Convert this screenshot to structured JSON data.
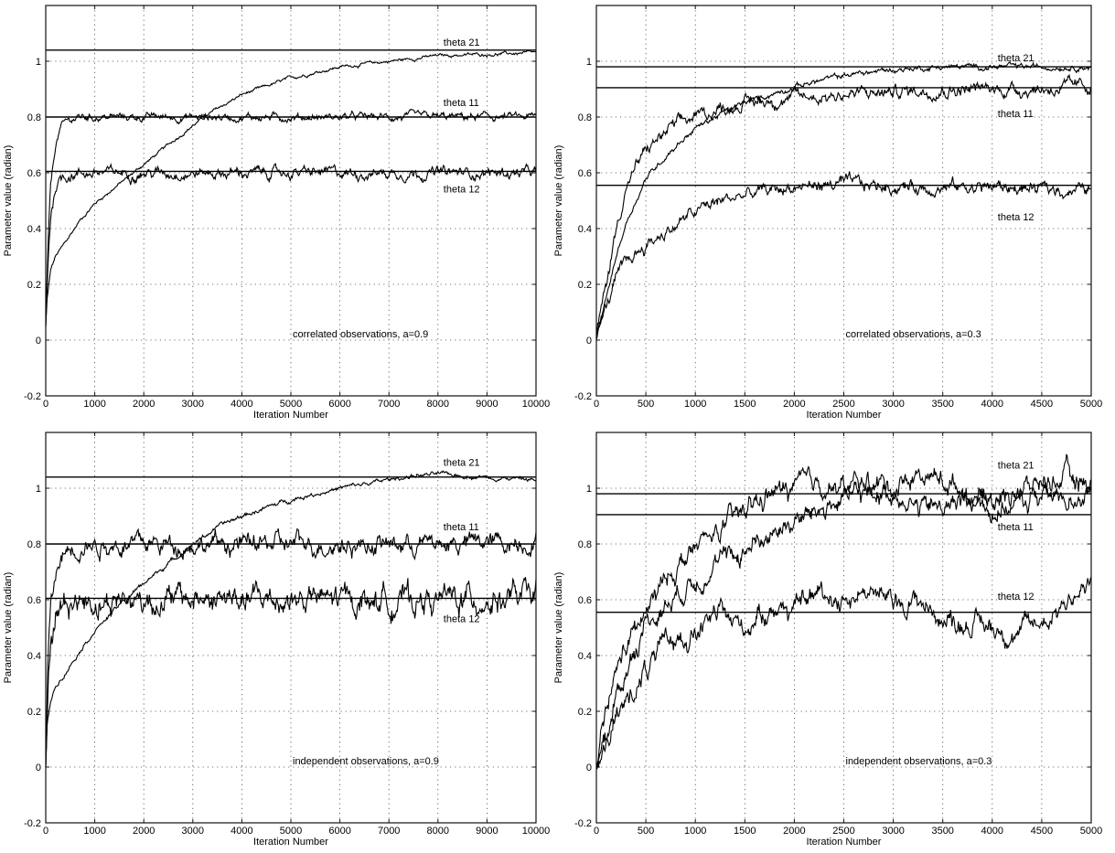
{
  "chart_data": [
    {
      "type": "line",
      "xlabel": "Iteration Number",
      "ylabel": "Parameter value (radian)",
      "xlim": [
        0,
        10000
      ],
      "ylim": [
        -0.2,
        1.2
      ],
      "xticks": [
        0,
        1000,
        2000,
        3000,
        4000,
        5000,
        6000,
        7000,
        8000,
        9000,
        10000
      ],
      "yticks": [
        -0.2,
        0,
        0.2,
        0.4,
        0.6,
        0.8,
        1
      ],
      "grid": true,
      "reference_lines": [
        1.04,
        0.8,
        0.605
      ],
      "annotation": "correlated observations, a=0.9",
      "series": [
        {
          "name": "theta 21",
          "label_at": [
            8000,
            1.055
          ],
          "noise": 0.003,
          "x": [
            0,
            30,
            100,
            200,
            400,
            700,
            1000,
            1500,
            2000,
            2500,
            3000,
            3500,
            4000,
            5000,
            6000,
            7000,
            8000,
            9000,
            10000
          ],
          "y": [
            0.05,
            0.15,
            0.25,
            0.3,
            0.35,
            0.43,
            0.49,
            0.56,
            0.63,
            0.7,
            0.77,
            0.83,
            0.88,
            0.94,
            0.98,
            1.0,
            1.02,
            1.025,
            1.03
          ]
        },
        {
          "name": "theta 11",
          "label_at": [
            8000,
            0.84
          ],
          "noise": 0.007,
          "x": [
            0,
            50,
            100,
            200,
            300,
            400,
            500,
            700,
            1000,
            2000,
            4000,
            6000,
            8000,
            10000
          ],
          "y": [
            0.05,
            0.35,
            0.55,
            0.7,
            0.76,
            0.78,
            0.79,
            0.8,
            0.8,
            0.8,
            0.8,
            0.8,
            0.8,
            0.8
          ]
        },
        {
          "name": "theta 12",
          "label_at": [
            8000,
            0.53
          ],
          "noise": 0.01,
          "x": [
            0,
            50,
            100,
            200,
            300,
            400,
            500,
            700,
            1000,
            2000,
            4000,
            6000,
            8000,
            10000
          ],
          "y": [
            0.05,
            0.3,
            0.45,
            0.55,
            0.58,
            0.59,
            0.595,
            0.6,
            0.6,
            0.6,
            0.6,
            0.6,
            0.6,
            0.6
          ]
        }
      ]
    },
    {
      "type": "line",
      "xlabel": "Iteration Number",
      "ylabel": "Parameter value (radian)",
      "xlim": [
        0,
        5000
      ],
      "ylim": [
        -0.2,
        1.2
      ],
      "xticks": [
        0,
        500,
        1000,
        1500,
        2000,
        2500,
        3000,
        3500,
        4000,
        4500,
        5000
      ],
      "yticks": [
        -0.2,
        0,
        0.2,
        0.4,
        0.6,
        0.8,
        1
      ],
      "grid": true,
      "reference_lines": [
        0.98,
        0.905,
        0.555
      ],
      "annotation": "correlated observations, a=0.3",
      "series": [
        {
          "name": "theta 21",
          "label_at": [
            4000,
            1.0
          ],
          "noise": 0.005,
          "x": [
            0,
            100,
            200,
            300,
            400,
            500,
            750,
            1000,
            1250,
            1500,
            2000,
            2500,
            3000,
            3500,
            4000,
            4500,
            5000
          ],
          "y": [
            0.0,
            0.15,
            0.3,
            0.42,
            0.5,
            0.58,
            0.68,
            0.76,
            0.81,
            0.85,
            0.91,
            0.95,
            0.97,
            0.98,
            0.98,
            0.98,
            0.98
          ]
        },
        {
          "name": "theta 11",
          "label_at": [
            4000,
            0.8
          ],
          "noise": 0.012,
          "x": [
            0,
            100,
            200,
            300,
            400,
            500,
            750,
            1000,
            1250,
            1500,
            2000,
            2500,
            3000,
            3500,
            4000,
            4500,
            5000
          ],
          "y": [
            0.02,
            0.2,
            0.4,
            0.55,
            0.62,
            0.68,
            0.76,
            0.8,
            0.83,
            0.85,
            0.87,
            0.88,
            0.89,
            0.9,
            0.9,
            0.9,
            0.91
          ]
        },
        {
          "name": "theta 12",
          "label_at": [
            4000,
            0.43
          ],
          "noise": 0.012,
          "x": [
            0,
            100,
            200,
            300,
            400,
            500,
            750,
            1000,
            1250,
            1500,
            2000,
            2500,
            3000,
            3500,
            4000,
            4500,
            5000
          ],
          "y": [
            0.02,
            0.12,
            0.22,
            0.27,
            0.31,
            0.34,
            0.4,
            0.46,
            0.5,
            0.52,
            0.55,
            0.56,
            0.55,
            0.55,
            0.55,
            0.54,
            0.54
          ]
        }
      ]
    },
    {
      "type": "line",
      "xlabel": "Iteration Number",
      "ylabel": "Parameter value (radian)",
      "xlim": [
        0,
        10000
      ],
      "ylim": [
        -0.2,
        1.2
      ],
      "xticks": [
        0,
        1000,
        2000,
        3000,
        4000,
        5000,
        6000,
        7000,
        8000,
        9000,
        10000
      ],
      "yticks": [
        -0.2,
        0,
        0.2,
        0.4,
        0.6,
        0.8,
        1
      ],
      "grid": true,
      "reference_lines": [
        1.04,
        0.8,
        0.605
      ],
      "annotation": "independent observations, a=0.9",
      "series": [
        {
          "name": "theta 21",
          "label_at": [
            8000,
            1.08
          ],
          "noise": 0.004,
          "x": [
            0,
            30,
            100,
            200,
            400,
            700,
            1000,
            1500,
            2000,
            2500,
            3000,
            3500,
            4000,
            5000,
            6000,
            7000,
            7500,
            8000,
            9000,
            10000
          ],
          "y": [
            0.0,
            0.15,
            0.24,
            0.29,
            0.34,
            0.42,
            0.49,
            0.58,
            0.66,
            0.73,
            0.8,
            0.86,
            0.9,
            0.96,
            1.0,
            1.03,
            1.045,
            1.05,
            1.04,
            1.03
          ]
        },
        {
          "name": "theta 11",
          "label_at": [
            8000,
            0.85
          ],
          "noise": 0.018,
          "x": [
            0,
            50,
            100,
            200,
            300,
            400,
            500,
            700,
            1000,
            2000,
            4000,
            6000,
            8000,
            10000
          ],
          "y": [
            0.0,
            0.4,
            0.56,
            0.68,
            0.74,
            0.77,
            0.79,
            0.8,
            0.8,
            0.8,
            0.8,
            0.8,
            0.8,
            0.81
          ]
        },
        {
          "name": "theta 12",
          "label_at": [
            8000,
            0.52
          ],
          "noise": 0.025,
          "x": [
            0,
            50,
            100,
            200,
            300,
            400,
            500,
            700,
            1000,
            2000,
            4000,
            6000,
            8000,
            10000
          ],
          "y": [
            0.0,
            0.35,
            0.48,
            0.54,
            0.57,
            0.59,
            0.6,
            0.6,
            0.6,
            0.6,
            0.6,
            0.6,
            0.6,
            0.61
          ]
        }
      ]
    },
    {
      "type": "line",
      "xlabel": "Iteration Number",
      "ylabel": "Parameter value (radian)",
      "xlim": [
        0,
        5000
      ],
      "ylim": [
        -0.2,
        1.2
      ],
      "xticks": [
        0,
        500,
        1000,
        1500,
        2000,
        2500,
        3000,
        3500,
        4000,
        4500,
        5000
      ],
      "yticks": [
        -0.2,
        0,
        0.2,
        0.4,
        0.6,
        0.8,
        1
      ],
      "grid": true,
      "reference_lines": [
        0.98,
        0.905,
        0.555
      ],
      "annotation": "independent observations, a=0.3",
      "series": [
        {
          "name": "theta 21",
          "label_at": [
            4000,
            1.07
          ],
          "noise": 0.02,
          "x": [
            0,
            100,
            250,
            500,
            750,
            1000,
            1250,
            1500,
            1750,
            2000,
            2250,
            2500,
            2750,
            3000,
            3250,
            3500,
            3750,
            4000,
            4250,
            4500,
            4750,
            5000
          ],
          "y": [
            0.0,
            0.2,
            0.4,
            0.55,
            0.7,
            0.78,
            0.85,
            0.92,
            0.98,
            1.0,
            1.02,
            1.0,
            1.02,
            1.01,
            1.05,
            1.03,
            0.98,
            0.96,
            0.99,
            1.02,
            1.04,
            1.01
          ]
        },
        {
          "name": "theta 11",
          "label_at": [
            4000,
            0.85
          ],
          "noise": 0.02,
          "x": [
            0,
            100,
            250,
            500,
            750,
            1000,
            1250,
            1500,
            1750,
            2000,
            2250,
            2500,
            2750,
            3000,
            3250,
            3500,
            3750,
            4000,
            4250,
            4500,
            4750,
            5000
          ],
          "y": [
            0.0,
            0.1,
            0.3,
            0.52,
            0.6,
            0.68,
            0.73,
            0.78,
            0.84,
            0.88,
            0.92,
            0.96,
            0.98,
            0.99,
            0.93,
            0.93,
            0.97,
            0.92,
            0.94,
            0.98,
            0.96,
            1.0
          ]
        },
        {
          "name": "theta 12",
          "label_at": [
            4000,
            0.6
          ],
          "noise": 0.02,
          "x": [
            0,
            100,
            250,
            500,
            750,
            1000,
            1250,
            1500,
            1750,
            2000,
            2250,
            2500,
            2750,
            3000,
            3250,
            3500,
            3750,
            4000,
            4250,
            4500,
            4750,
            5000
          ],
          "y": [
            0.0,
            0.1,
            0.2,
            0.35,
            0.45,
            0.48,
            0.55,
            0.5,
            0.58,
            0.56,
            0.63,
            0.6,
            0.64,
            0.58,
            0.6,
            0.53,
            0.52,
            0.5,
            0.48,
            0.52,
            0.6,
            0.65
          ]
        }
      ]
    }
  ]
}
